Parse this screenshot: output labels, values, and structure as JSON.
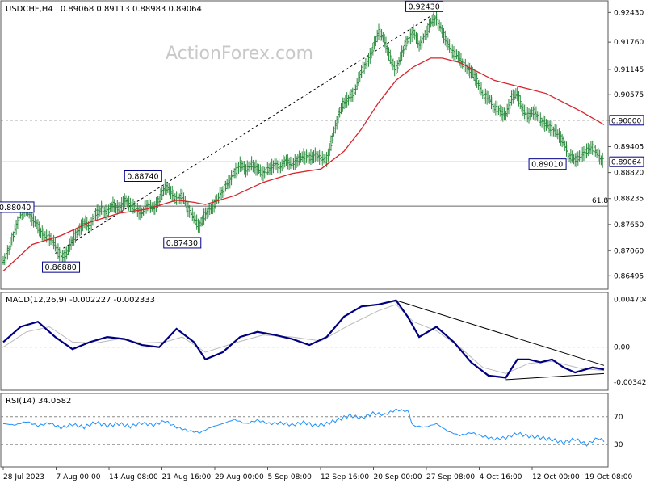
{
  "chart_data": [
    {
      "type": "candlestick",
      "title": "USDCHF,H4",
      "ohlc_label": "0.89068 0.89113 0.88983 0.89064",
      "watermark": "ActionForex.com",
      "ylim": [
        0.863,
        0.926
      ],
      "y_ticks": [
        "0.92430",
        "0.91760",
        "0.91145",
        "0.90575",
        "0.90000",
        "0.89405",
        "0.88820",
        "0.88235",
        "0.87650",
        "0.87060",
        "0.86495"
      ],
      "highlight_levels": [
        {
          "label": "0.90000",
          "value": 0.9
        },
        {
          "label": "0.89064",
          "value": 0.89064
        }
      ],
      "fib_label": "61.8",
      "price_path": [
        [
          0,
          0.868
        ],
        [
          2,
          0.871
        ],
        [
          4,
          0.875
        ],
        [
          6,
          0.879
        ],
        [
          8,
          0.88
        ],
        [
          10,
          0.878
        ],
        [
          12,
          0.876
        ],
        [
          14,
          0.874
        ],
        [
          16,
          0.8735
        ],
        [
          18,
          0.872
        ],
        [
          20,
          0.869
        ],
        [
          22,
          0.87
        ],
        [
          24,
          0.873
        ],
        [
          26,
          0.875
        ],
        [
          28,
          0.877
        ],
        [
          30,
          0.876
        ],
        [
          32,
          0.879
        ],
        [
          34,
          0.88
        ],
        [
          36,
          0.879
        ],
        [
          38,
          0.881
        ],
        [
          40,
          0.88
        ],
        [
          42,
          0.882
        ],
        [
          44,
          0.881
        ],
        [
          46,
          0.88
        ],
        [
          48,
          0.879
        ],
        [
          50,
          0.881
        ],
        [
          52,
          0.88
        ],
        [
          54,
          0.882
        ],
        [
          56,
          0.885
        ],
        [
          58,
          0.884
        ],
        [
          60,
          0.882
        ],
        [
          62,
          0.883
        ],
        [
          64,
          0.88
        ],
        [
          66,
          0.878
        ],
        [
          68,
          0.876
        ],
        [
          70,
          0.879
        ],
        [
          72,
          0.88
        ],
        [
          74,
          0.882
        ],
        [
          76,
          0.884
        ],
        [
          78,
          0.886
        ],
        [
          80,
          0.888
        ],
        [
          82,
          0.89
        ],
        [
          84,
          0.889
        ],
        [
          86,
          0.89
        ],
        [
          88,
          0.889
        ],
        [
          90,
          0.888
        ],
        [
          92,
          0.889
        ],
        [
          94,
          0.89
        ],
        [
          96,
          0.8895
        ],
        [
          98,
          0.891
        ],
        [
          100,
          0.89
        ],
        [
          102,
          0.891
        ],
        [
          104,
          0.892
        ],
        [
          106,
          0.8915
        ],
        [
          108,
          0.892
        ],
        [
          110,
          0.8915
        ],
        [
          112,
          0.891
        ],
        [
          114,
          0.896
        ],
        [
          116,
          0.901
        ],
        [
          118,
          0.904
        ],
        [
          120,
          0.905
        ],
        [
          122,
          0.907
        ],
        [
          124,
          0.911
        ],
        [
          126,
          0.913
        ],
        [
          128,
          0.916
        ],
        [
          130,
          0.92
        ],
        [
          132,
          0.918
        ],
        [
          134,
          0.914
        ],
        [
          136,
          0.911
        ],
        [
          138,
          0.915
        ],
        [
          140,
          0.918
        ],
        [
          142,
          0.92
        ],
        [
          144,
          0.917
        ],
        [
          146,
          0.919
        ],
        [
          148,
          0.922
        ],
        [
          150,
          0.923
        ],
        [
          152,
          0.92
        ],
        [
          154,
          0.917
        ],
        [
          156,
          0.915
        ],
        [
          158,
          0.914
        ],
        [
          160,
          0.912
        ],
        [
          162,
          0.911
        ],
        [
          164,
          0.909
        ],
        [
          166,
          0.906
        ],
        [
          168,
          0.905
        ],
        [
          170,
          0.903
        ],
        [
          172,
          0.902
        ],
        [
          174,
          0.901
        ],
        [
          176,
          0.905
        ],
        [
          178,
          0.906
        ],
        [
          180,
          0.902
        ],
        [
          182,
          0.901
        ],
        [
          184,
          0.902
        ],
        [
          186,
          0.9
        ],
        [
          188,
          0.899
        ],
        [
          190,
          0.898
        ],
        [
          192,
          0.897
        ],
        [
          194,
          0.895
        ],
        [
          196,
          0.892
        ],
        [
          198,
          0.891
        ],
        [
          200,
          0.892
        ],
        [
          202,
          0.893
        ],
        [
          204,
          0.894
        ],
        [
          206,
          0.892
        ],
        [
          208,
          0.8906
        ]
      ],
      "ma_path": [
        [
          0,
          0.866
        ],
        [
          10,
          0.872
        ],
        [
          20,
          0.874
        ],
        [
          30,
          0.877
        ],
        [
          40,
          0.879
        ],
        [
          50,
          0.88
        ],
        [
          60,
          0.882
        ],
        [
          66,
          0.8815
        ],
        [
          70,
          0.881
        ],
        [
          80,
          0.883
        ],
        [
          90,
          0.886
        ],
        [
          100,
          0.888
        ],
        [
          110,
          0.889
        ],
        [
          118,
          0.893
        ],
        [
          124,
          0.898
        ],
        [
          130,
          0.904
        ],
        [
          136,
          0.909
        ],
        [
          142,
          0.912
        ],
        [
          148,
          0.914
        ],
        [
          152,
          0.914
        ],
        [
          158,
          0.913
        ],
        [
          164,
          0.911
        ],
        [
          170,
          0.909
        ],
        [
          176,
          0.908
        ],
        [
          182,
          0.907
        ],
        [
          188,
          0.906
        ],
        [
          194,
          0.904
        ],
        [
          200,
          0.902
        ],
        [
          208,
          0.899
        ]
      ],
      "annotations": [
        {
          "label": "0.92430",
          "i": 150,
          "value": 0.9243,
          "pos": "top"
        },
        {
          "label": "0.88740",
          "i": 56,
          "value": 0.8874,
          "pos": "left"
        },
        {
          "label": "0.87430",
          "i": 62,
          "value": 0.8743,
          "pos": "bottom"
        },
        {
          "label": "0.86880",
          "i": 20,
          "value": 0.8688,
          "pos": "bottom"
        },
        {
          "label": "0.89010",
          "i": 196,
          "value": 0.8901,
          "pos": "left"
        },
        {
          "label": "0.88040",
          "i": 0,
          "value": 0.8804,
          "pos": "edge"
        }
      ],
      "trendline": {
        "from": [
          18,
          0.87
        ],
        "to": [
          150,
          0.9243
        ]
      }
    },
    {
      "type": "line",
      "title": "MACD(12,26,9) -0.002227 -0.002333",
      "ylim": [
        -0.004,
        0.0049
      ],
      "y_ticks": [
        "0.004704",
        "0.00",
        "-0.003429"
      ],
      "zero_label": "0.00",
      "series": [
        {
          "values": [
            [
              0,
              0.0005
            ],
            [
              6,
              0.002
            ],
            [
              12,
              0.0025
            ],
            [
              18,
              0.001
            ],
            [
              24,
              -0.0002
            ],
            [
              30,
              0.0005
            ],
            [
              36,
              0.001
            ],
            [
              42,
              0.0008
            ],
            [
              48,
              0.0002
            ],
            [
              54,
              0.0
            ],
            [
              60,
              0.0018
            ],
            [
              66,
              0.0005
            ],
            [
              70,
              -0.0012
            ],
            [
              76,
              -0.0005
            ],
            [
              82,
              0.001
            ],
            [
              88,
              0.0015
            ],
            [
              94,
              0.0012
            ],
            [
              100,
              0.0008
            ],
            [
              106,
              0.0002
            ],
            [
              112,
              0.001
            ],
            [
              118,
              0.003
            ],
            [
              124,
              0.004
            ],
            [
              130,
              0.0042
            ],
            [
              136,
              0.0046
            ],
            [
              140,
              0.003
            ],
            [
              144,
              0.001
            ],
            [
              150,
              0.002
            ],
            [
              156,
              0.0005
            ],
            [
              162,
              -0.0015
            ],
            [
              168,
              -0.0028
            ],
            [
              174,
              -0.003
            ],
            [
              178,
              -0.0012
            ],
            [
              182,
              -0.0012
            ],
            [
              186,
              -0.0015
            ],
            [
              190,
              -0.0012
            ],
            [
              194,
              -0.002
            ],
            [
              198,
              -0.0025
            ],
            [
              204,
              -0.002
            ],
            [
              208,
              -0.0022
            ]
          ]
        }
      ],
      "signal_path": [
        [
          0,
          0.0
        ],
        [
          8,
          0.0015
        ],
        [
          16,
          0.002
        ],
        [
          24,
          0.0005
        ],
        [
          32,
          0.0004
        ],
        [
          40,
          0.0008
        ],
        [
          48,
          0.0004
        ],
        [
          56,
          0.0005
        ],
        [
          62,
          0.001
        ],
        [
          70,
          -0.0005
        ],
        [
          80,
          0.0004
        ],
        [
          90,
          0.0012
        ],
        [
          100,
          0.001
        ],
        [
          110,
          0.0006
        ],
        [
          120,
          0.0022
        ],
        [
          130,
          0.0036
        ],
        [
          136,
          0.0042
        ],
        [
          142,
          0.0025
        ],
        [
          150,
          0.0016
        ],
        [
          158,
          0.0
        ],
        [
          166,
          -0.002
        ],
        [
          174,
          -0.0026
        ],
        [
          182,
          -0.0016
        ],
        [
          190,
          -0.0014
        ],
        [
          200,
          -0.0021
        ],
        [
          208,
          -0.0023
        ]
      ],
      "trendlines": [
        {
          "from": [
            136,
            0.0046
          ],
          "to": [
            208,
            -0.0018
          ]
        },
        {
          "from": [
            174,
            -0.0032
          ],
          "to": [
            208,
            -0.0026
          ]
        }
      ]
    },
    {
      "type": "line",
      "title": "RSI(14) 34.0582",
      "ylim": [
        0,
        100
      ],
      "y_ticks": [
        "70",
        "30"
      ],
      "levels": [
        70,
        30
      ],
      "series": [
        {
          "values": [
            [
              0,
              60
            ],
            [
              4,
              58
            ],
            [
              8,
              63
            ],
            [
              12,
              57
            ],
            [
              16,
              61
            ],
            [
              20,
              54
            ],
            [
              24,
              59
            ],
            [
              28,
              55
            ],
            [
              32,
              62
            ],
            [
              36,
              57
            ],
            [
              40,
              60
            ],
            [
              44,
              56
            ],
            [
              48,
              61
            ],
            [
              52,
              58
            ],
            [
              56,
              64
            ],
            [
              60,
              55
            ],
            [
              64,
              50
            ],
            [
              68,
              47
            ],
            [
              72,
              55
            ],
            [
              76,
              60
            ],
            [
              80,
              66
            ],
            [
              84,
              60
            ],
            [
              88,
              65
            ],
            [
              92,
              60
            ],
            [
              96,
              61
            ],
            [
              100,
              58
            ],
            [
              104,
              62
            ],
            [
              108,
              57
            ],
            [
              112,
              60
            ],
            [
              116,
              66
            ],
            [
              120,
              72
            ],
            [
              124,
              68
            ],
            [
              128,
              75
            ],
            [
              132,
              73
            ],
            [
              136,
              80
            ],
            [
              140,
              78
            ],
            [
              142,
              57
            ],
            [
              146,
              55
            ],
            [
              150,
              60
            ],
            [
              154,
              49
            ],
            [
              158,
              43
            ],
            [
              162,
              47
            ],
            [
              166,
              42
            ],
            [
              170,
              38
            ],
            [
              174,
              40
            ],
            [
              178,
              46
            ],
            [
              182,
              42
            ],
            [
              186,
              40
            ],
            [
              190,
              37
            ],
            [
              194,
              33
            ],
            [
              198,
              38
            ],
            [
              202,
              30
            ],
            [
              206,
              40
            ],
            [
              208,
              34
            ]
          ]
        }
      ]
    }
  ],
  "x_ticks": [
    "28 Jul 2023",
    "7 Aug 00:00",
    "14 Aug 08:00",
    "21 Aug 16:00",
    "29 Aug 00:00",
    "5 Sep 08:00",
    "12 Sep 16:00",
    "20 Sep 00:00",
    "27 Sep 08:00",
    "4 Oct 16:00",
    "12 Oct 00:00",
    "19 Oct 08:00"
  ],
  "colors": {
    "price": "#2b8a3e",
    "ma": "#d9242b",
    "macd": "#000080",
    "signal": "#bbbbbb",
    "rsi": "#1e90ff",
    "label_box": "#00008b",
    "highlight_bg": "#ffffff",
    "highlight_border": "#000080"
  }
}
